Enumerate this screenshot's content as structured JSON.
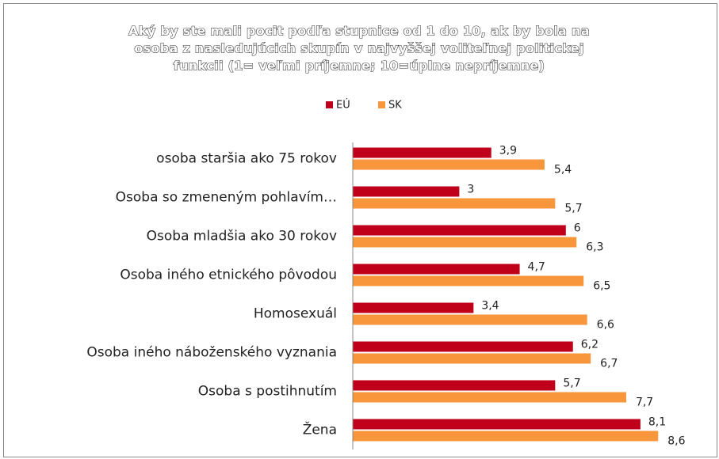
{
  "chart_data": {
    "type": "bar",
    "orientation": "horizontal",
    "title": [
      "Aký by ste mali pocit podľa stupnice od 1 do 10, ak by bola na",
      "osoba z nasledujúcich skupín v najvyššej voliteľnej politickej",
      "funkcii (1= veľmi príjemne; 10=úplne nepríjemne)"
    ],
    "categories": [
      "osoba staršia ako 75 rokov",
      "Osoba so zmeneným pohlavím…",
      "Osoba mladšia ako 30 rokov",
      "Osoba iného etnického pôvodou",
      "Homosexuál",
      "Osoba iného náboženského vyznania",
      "Osoba s postihnutím",
      "Žena"
    ],
    "series": [
      {
        "name": "EÚ",
        "color": "#c0001a",
        "values": [
          3.9,
          3,
          6,
          4.7,
          3.4,
          6.2,
          5.7,
          8.1
        ],
        "value_labels": [
          "3,9",
          "3",
          "6",
          "4,7",
          "3,4",
          "6,2",
          "5,7",
          "8,1"
        ]
      },
      {
        "name": "SK",
        "color": "#f7963a",
        "values": [
          5.4,
          5.7,
          6.3,
          6.5,
          6.6,
          6.7,
          7.7,
          8.6
        ],
        "value_labels": [
          "5,4",
          "5,7",
          "6,3",
          "6,5",
          "6,6",
          "6,7",
          "7,7",
          "8,6"
        ]
      }
    ],
    "xlim": [
      0,
      10
    ],
    "legend": "top"
  }
}
